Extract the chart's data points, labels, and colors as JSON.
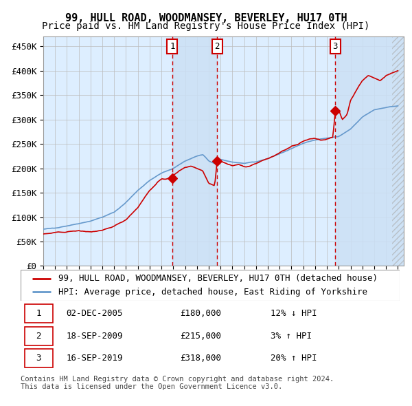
{
  "title": "99, HULL ROAD, WOODMANSEY, BEVERLEY, HU17 0TH",
  "subtitle": "Price paid vs. HM Land Registry's House Price Index (HPI)",
  "ylim": [
    0,
    470000
  ],
  "yticks": [
    0,
    50000,
    100000,
    150000,
    200000,
    250000,
    300000,
    350000,
    400000,
    450000
  ],
  "ytick_labels": [
    "£0",
    "£50K",
    "£100K",
    "£150K",
    "£200K",
    "£250K",
    "£300K",
    "£350K",
    "£400K",
    "£450K"
  ],
  "xlim_start": 1995.0,
  "xlim_end": 2025.5,
  "hpi_color": "#6699cc",
  "price_color": "#cc0000",
  "bg_color": "#ddeeff",
  "grid_color": "#bbbbbb",
  "transactions": [
    {
      "num": 1,
      "date": "02-DEC-2005",
      "year": 2005.92,
      "price": 180000,
      "pct": "12%",
      "dir": "↓"
    },
    {
      "num": 2,
      "date": "18-SEP-2009",
      "year": 2009.71,
      "price": 215000,
      "pct": "3%",
      "dir": "↑"
    },
    {
      "num": 3,
      "date": "16-SEP-2019",
      "year": 2019.71,
      "price": 318000,
      "pct": "20%",
      "dir": "↑"
    }
  ],
  "legend_entries": [
    "99, HULL ROAD, WOODMANSEY, BEVERLEY, HU17 0TH (detached house)",
    "HPI: Average price, detached house, East Riding of Yorkshire"
  ],
  "footer": "Contains HM Land Registry data © Crown copyright and database right 2024.\nThis data is licensed under the Open Government Licence v3.0.",
  "transaction_box_color": "#cc0000",
  "shade_color": "#cce0f5",
  "title_fontsize": 11,
  "subtitle_fontsize": 10,
  "tick_fontsize": 9,
  "legend_fontsize": 9,
  "footer_fontsize": 7.5,
  "table_fontsize": 9
}
